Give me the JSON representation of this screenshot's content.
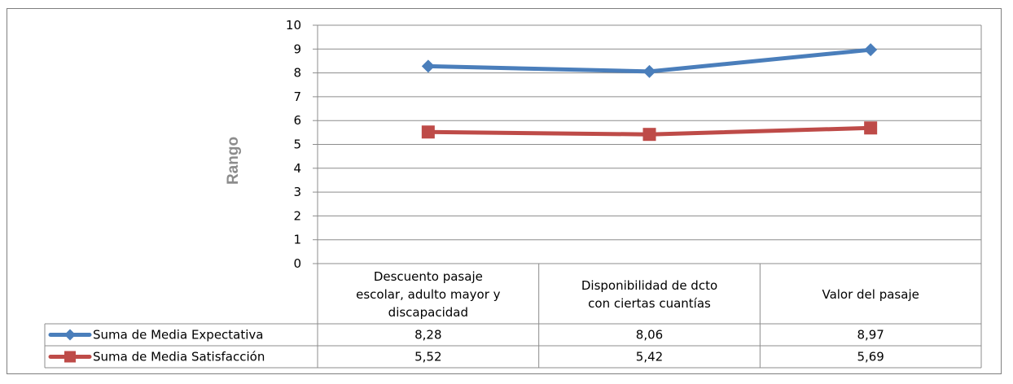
{
  "chart_data": {
    "type": "line",
    "ylabel": "Rango",
    "xlabel": "",
    "ylim": [
      0,
      10
    ],
    "yticks": [
      0,
      1,
      2,
      3,
      4,
      5,
      6,
      7,
      8,
      9,
      10
    ],
    "grid": true,
    "categories": [
      [
        "Descuento pasaje",
        "escolar, adulto mayor y",
        "discapacidad"
      ],
      [
        "Disponibilidad de dcto",
        "con ciertas cuantías"
      ],
      [
        "Valor del pasaje"
      ]
    ],
    "series": [
      {
        "name": "Suma de Media Expectativa",
        "values": [
          8.28,
          8.06,
          8.97
        ],
        "value_labels": [
          "8,28",
          "8,06",
          "8,97"
        ],
        "color": "#4a7ebb",
        "marker": "diamond"
      },
      {
        "name": "Suma de Media Satisfacción",
        "values": [
          5.52,
          5.42,
          5.69
        ],
        "value_labels": [
          "5,52",
          "5,42",
          "5,69"
        ],
        "color": "#be4b48",
        "marker": "square"
      }
    ],
    "legend": "data-table"
  }
}
